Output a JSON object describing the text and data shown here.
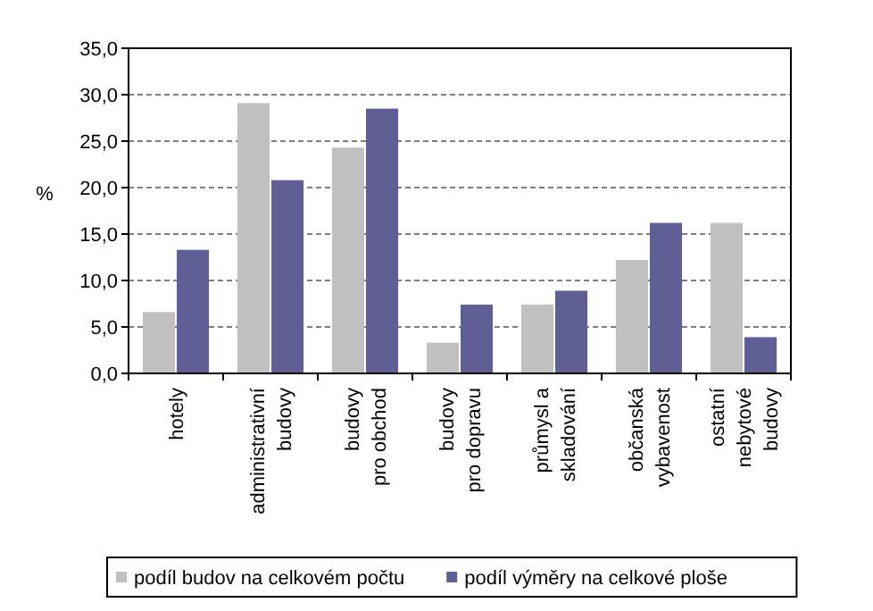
{
  "chart_data": {
    "type": "bar",
    "ylabel": "%",
    "categories": [
      "hotely",
      "administrativní\nbudovy",
      "budovy\npro obchod",
      "budovy\npro dopravu",
      "průmysl a\nskladování",
      "občanská\nvybavenost",
      "ostatní\nnebytové\nbudovy"
    ],
    "series": [
      {
        "name": "podíl budov na celkovém počtu",
        "color": "#c0c0c0",
        "values": [
          6.6,
          29.1,
          24.3,
          3.3,
          7.4,
          12.2,
          16.2
        ]
      },
      {
        "name": "podíl výměry na celkové ploše",
        "color": "#5f5f96",
        "values": [
          13.3,
          20.8,
          28.5,
          7.4,
          8.9,
          16.2,
          3.9
        ]
      }
    ],
    "ylim": [
      0,
      35
    ],
    "yticks": [
      {
        "value": 0,
        "label": "0,0"
      },
      {
        "value": 5,
        "label": "5,0"
      },
      {
        "value": 10,
        "label": "10,0"
      },
      {
        "value": 15,
        "label": "15,0"
      },
      {
        "value": 20,
        "label": "20,0"
      },
      {
        "value": 25,
        "label": "25,0"
      },
      {
        "value": 30,
        "label": "30,0"
      },
      {
        "value": 35,
        "label": "35,0"
      }
    ],
    "grid": "y",
    "legend": "bottom"
  }
}
